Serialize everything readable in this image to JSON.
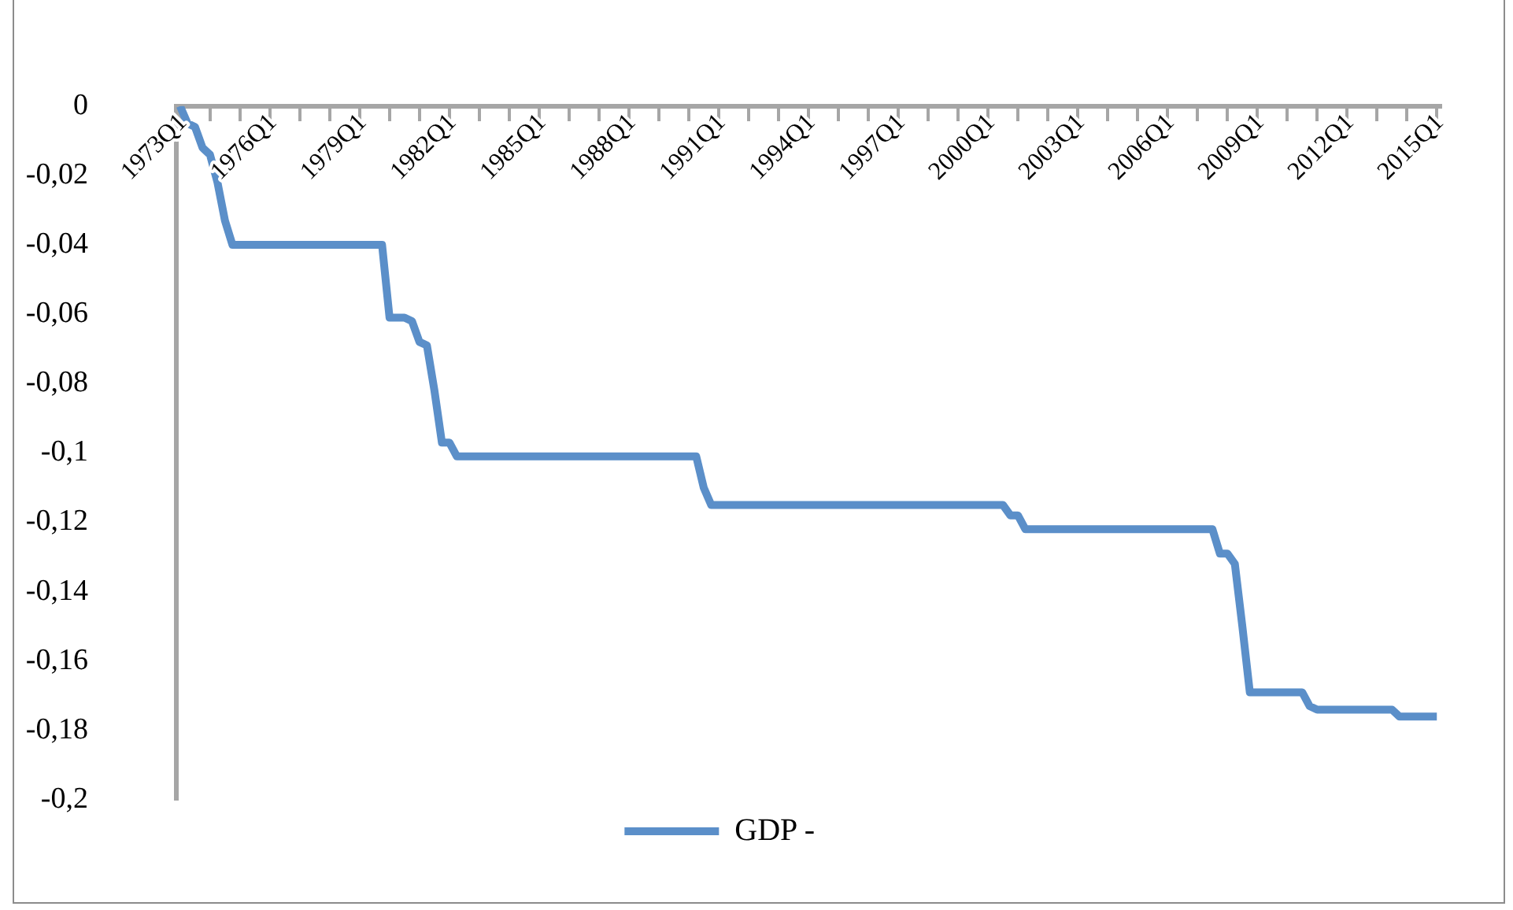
{
  "chart_data": {
    "type": "line",
    "categories": [
      "1973Q1",
      null,
      null,
      null,
      null,
      null,
      null,
      null,
      null,
      null,
      null,
      null,
      "1976Q1",
      null,
      null,
      null,
      null,
      null,
      null,
      null,
      null,
      null,
      null,
      null,
      "1979Q1",
      null,
      null,
      null,
      null,
      null,
      null,
      null,
      null,
      null,
      null,
      null,
      "1982Q1",
      null,
      null,
      null,
      null,
      null,
      null,
      null,
      null,
      null,
      null,
      null,
      "1985Q1",
      null,
      null,
      null,
      null,
      null,
      null,
      null,
      null,
      null,
      null,
      null,
      "1988Q1",
      null,
      null,
      null,
      null,
      null,
      null,
      null,
      null,
      null,
      null,
      null,
      "1991Q1",
      null,
      null,
      null,
      null,
      null,
      null,
      null,
      null,
      null,
      null,
      null,
      "1994Q1",
      null,
      null,
      null,
      null,
      null,
      null,
      null,
      null,
      null,
      null,
      null,
      "1997Q1",
      null,
      null,
      null,
      null,
      null,
      null,
      null,
      null,
      null,
      null,
      null,
      "2000Q1",
      null,
      null,
      null,
      null,
      null,
      null,
      null,
      null,
      null,
      null,
      null,
      "2003Q1",
      null,
      null,
      null,
      null,
      null,
      null,
      null,
      null,
      null,
      null,
      null,
      "2006Q1",
      null,
      null,
      null,
      null,
      null,
      null,
      null,
      null,
      null,
      null,
      null,
      "2009Q1",
      null,
      null,
      null,
      null,
      null,
      null,
      null,
      null,
      null,
      null,
      null,
      "2012Q1",
      null,
      null,
      null,
      null,
      null,
      null,
      null,
      null,
      null,
      null,
      null,
      "2015Q1"
    ],
    "series": [
      {
        "name": "GDP -",
        "color": "#5b8fc9",
        "values": [
          0,
          -0.005,
          -0.006,
          -0.012,
          -0.014,
          -0.022,
          -0.033,
          -0.04,
          -0.04,
          -0.04,
          -0.04,
          -0.04,
          -0.04,
          -0.04,
          -0.04,
          -0.04,
          -0.04,
          -0.04,
          -0.04,
          -0.04,
          -0.04,
          -0.04,
          -0.04,
          -0.04,
          -0.04,
          -0.04,
          -0.04,
          -0.04,
          -0.061,
          -0.061,
          -0.061,
          -0.062,
          -0.068,
          -0.069,
          -0.082,
          -0.097,
          -0.097,
          -0.101,
          -0.101,
          -0.101,
          -0.101,
          -0.101,
          -0.101,
          -0.101,
          -0.101,
          -0.101,
          -0.101,
          -0.101,
          -0.101,
          -0.101,
          -0.101,
          -0.101,
          -0.101,
          -0.101,
          -0.101,
          -0.101,
          -0.101,
          -0.101,
          -0.101,
          -0.101,
          -0.101,
          -0.101,
          -0.101,
          -0.101,
          -0.101,
          -0.101,
          -0.101,
          -0.101,
          -0.101,
          -0.101,
          -0.11,
          -0.115,
          -0.115,
          -0.115,
          -0.115,
          -0.115,
          -0.115,
          -0.115,
          -0.115,
          -0.115,
          -0.115,
          -0.115,
          -0.115,
          -0.115,
          -0.115,
          -0.115,
          -0.115,
          -0.115,
          -0.115,
          -0.115,
          -0.115,
          -0.115,
          -0.115,
          -0.115,
          -0.115,
          -0.115,
          -0.115,
          -0.115,
          -0.115,
          -0.115,
          -0.115,
          -0.115,
          -0.115,
          -0.115,
          -0.115,
          -0.115,
          -0.115,
          -0.115,
          -0.115,
          -0.115,
          -0.115,
          -0.118,
          -0.118,
          -0.122,
          -0.122,
          -0.122,
          -0.122,
          -0.122,
          -0.122,
          -0.122,
          -0.122,
          -0.122,
          -0.122,
          -0.122,
          -0.122,
          -0.122,
          -0.122,
          -0.122,
          -0.122,
          -0.122,
          -0.122,
          -0.122,
          -0.122,
          -0.122,
          -0.122,
          -0.122,
          -0.122,
          -0.122,
          -0.122,
          -0.129,
          -0.129,
          -0.132,
          -0.15,
          -0.169,
          -0.169,
          -0.169,
          -0.169,
          -0.169,
          -0.169,
          -0.169,
          -0.169,
          -0.173,
          -0.174,
          -0.174,
          -0.174,
          -0.174,
          -0.174,
          -0.174,
          -0.174,
          -0.174,
          -0.174,
          -0.174,
          -0.174,
          -0.176,
          -0.176,
          -0.176,
          -0.176,
          -0.176,
          -0.176
        ]
      }
    ],
    "ylim": [
      -0.2,
      0
    ],
    "yticks": [
      0,
      {
        "value": -0.02,
        "label": "-0,02"
      },
      {
        "value": -0.04,
        "label": "-0,04"
      },
      {
        "value": -0.06,
        "label": "-0,06"
      },
      {
        "value": -0.08,
        "label": "-0,08"
      },
      {
        "value": -0.1,
        "label": "-0,1"
      },
      {
        "value": -0.12,
        "label": "-0,12"
      },
      {
        "value": -0.14,
        "label": "-0,14"
      },
      {
        "value": -0.16,
        "label": "-0,16"
      },
      {
        "value": -0.18,
        "label": "-0,18"
      },
      {
        "value": -0.2,
        "label": "-0,2"
      }
    ],
    "legend": "bottom",
    "marker": "none"
  }
}
